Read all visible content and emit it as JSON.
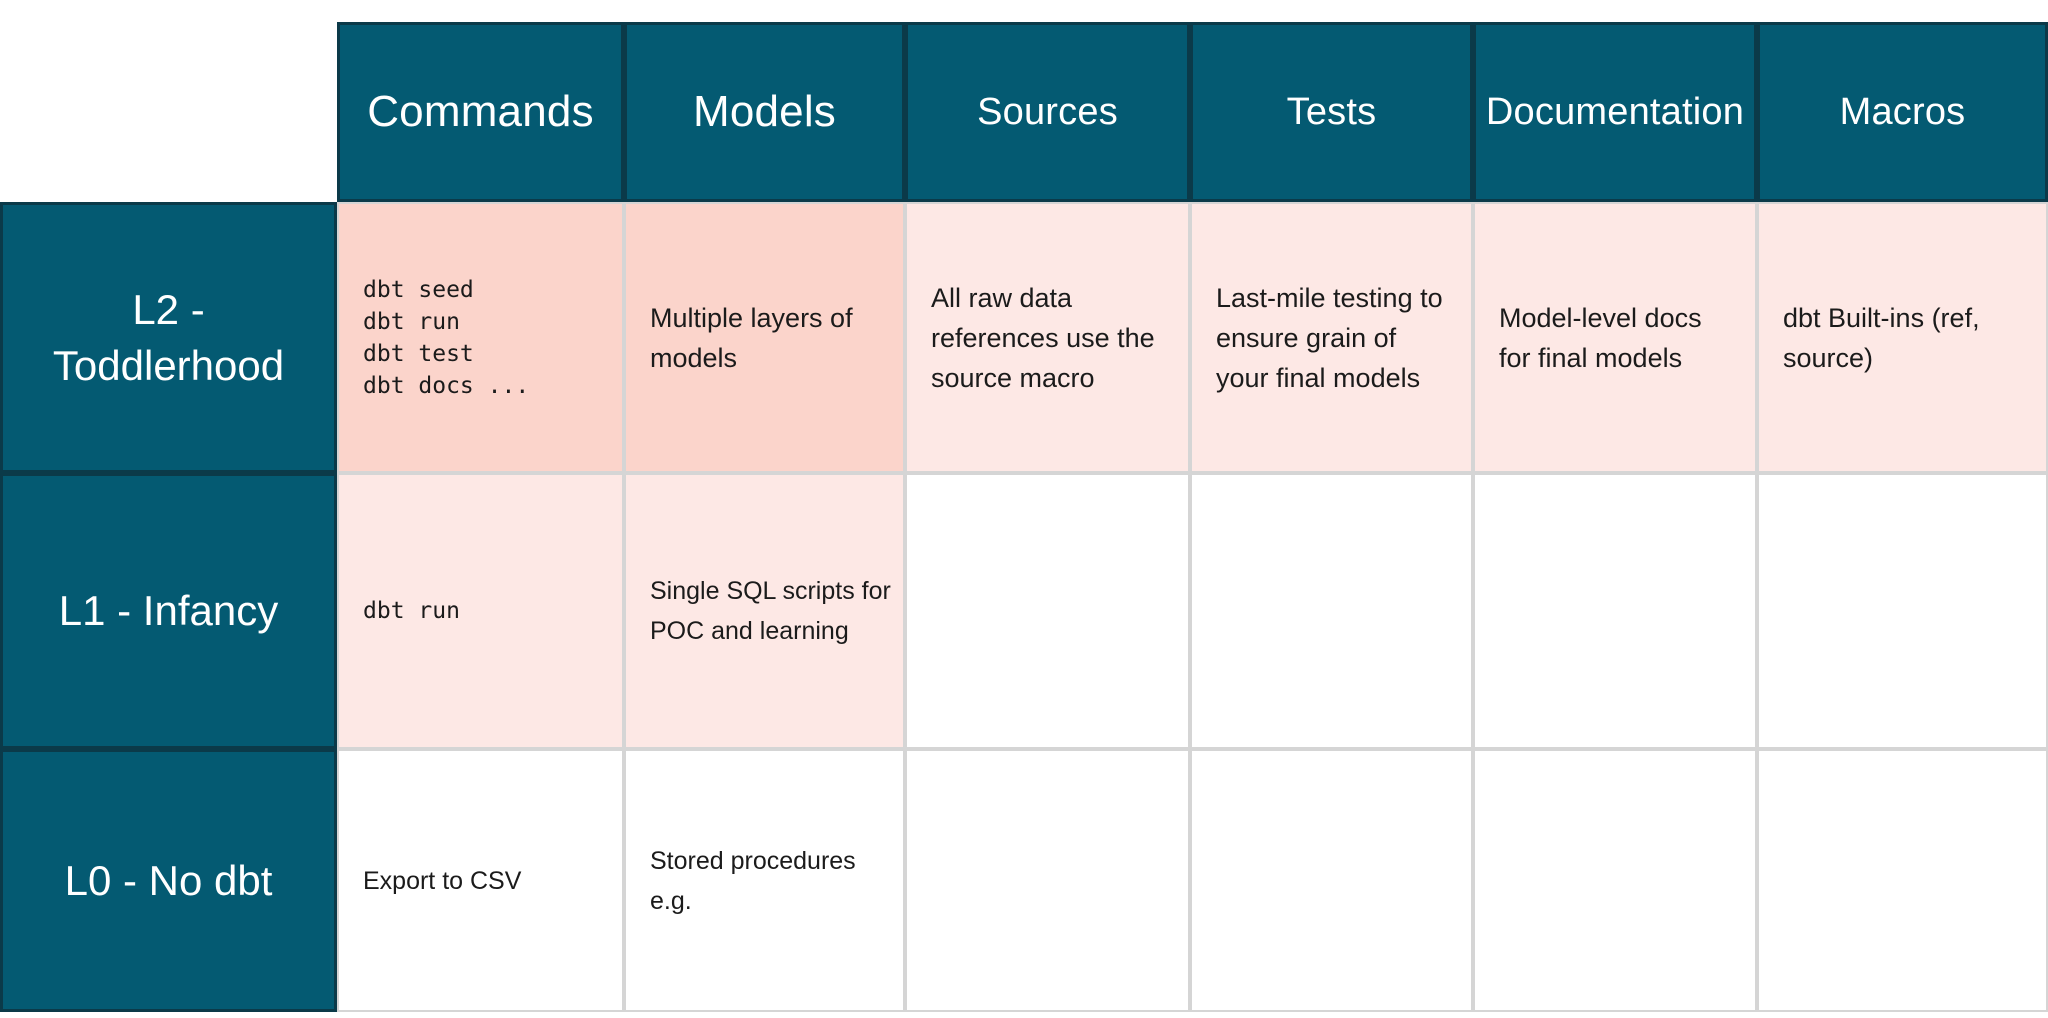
{
  "colors": {
    "teal": "#045A72",
    "teal_border": "#0B3A49",
    "pink_strong": "#FBD4CB",
    "pink_light": "#FDE8E5",
    "grid_line": "#D5D5D5",
    "header_text": "#FFFFFF",
    "body_text": "#1B1B1B"
  },
  "table": {
    "columns": [
      "Commands",
      "Models",
      "Sources",
      "Tests",
      "Documentation",
      "Macros"
    ],
    "rows": [
      {
        "label": "L2 -\nToddlerhood",
        "cells": {
          "commands": "dbt seed\ndbt run\ndbt test\ndbt docs ...",
          "models": "Multiple layers of\nmodels",
          "sources": "All raw data\nreferences use the\nsource macro",
          "tests": "Last-mile testing to\nensure grain of\nyour final models",
          "documentation": "Model-level docs\nfor final models",
          "macros": "dbt Built-ins (ref,\nsource)"
        }
      },
      {
        "label": "L1 - Infancy",
        "cells": {
          "commands": "dbt run",
          "models": "Single SQL scripts for\nPOC and learning",
          "sources": "",
          "tests": "",
          "documentation": "",
          "macros": ""
        }
      },
      {
        "label": "L0 - No dbt",
        "cells": {
          "commands": "Export to CSV",
          "models": "Stored procedures\ne.g.",
          "sources": "",
          "tests": "",
          "documentation": "",
          "macros": ""
        }
      }
    ]
  }
}
